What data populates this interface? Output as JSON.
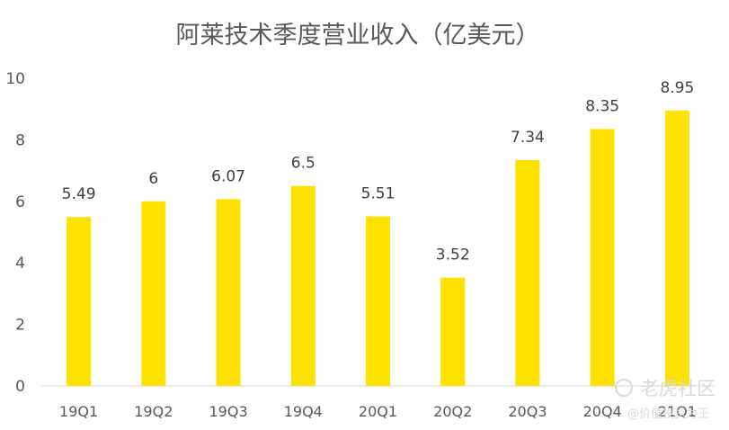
{
  "chart_data": {
    "type": "bar",
    "title": "阿莱技术季度营业收入（亿美元）",
    "categories": [
      "19Q1",
      "19Q2",
      "19Q3",
      "19Q4",
      "20Q1",
      "20Q2",
      "20Q3",
      "20Q4",
      "21Q1"
    ],
    "values": [
      5.49,
      6,
      6.07,
      6.5,
      5.51,
      3.52,
      7.34,
      8.35,
      8.95
    ],
    "value_labels": [
      "5.49",
      "6",
      "6.07",
      "6.5",
      "5.51",
      "3.52",
      "7.34",
      "8.35",
      "8.95"
    ],
    "ylim": [
      0,
      10
    ],
    "yticks": [
      "0",
      "2",
      "4",
      "6",
      "8",
      "10"
    ],
    "grid": false,
    "legend": "none",
    "bar_color": "#FFE100"
  },
  "watermark": {
    "line1": "老虎社区",
    "line2": "@价值投资为王"
  }
}
